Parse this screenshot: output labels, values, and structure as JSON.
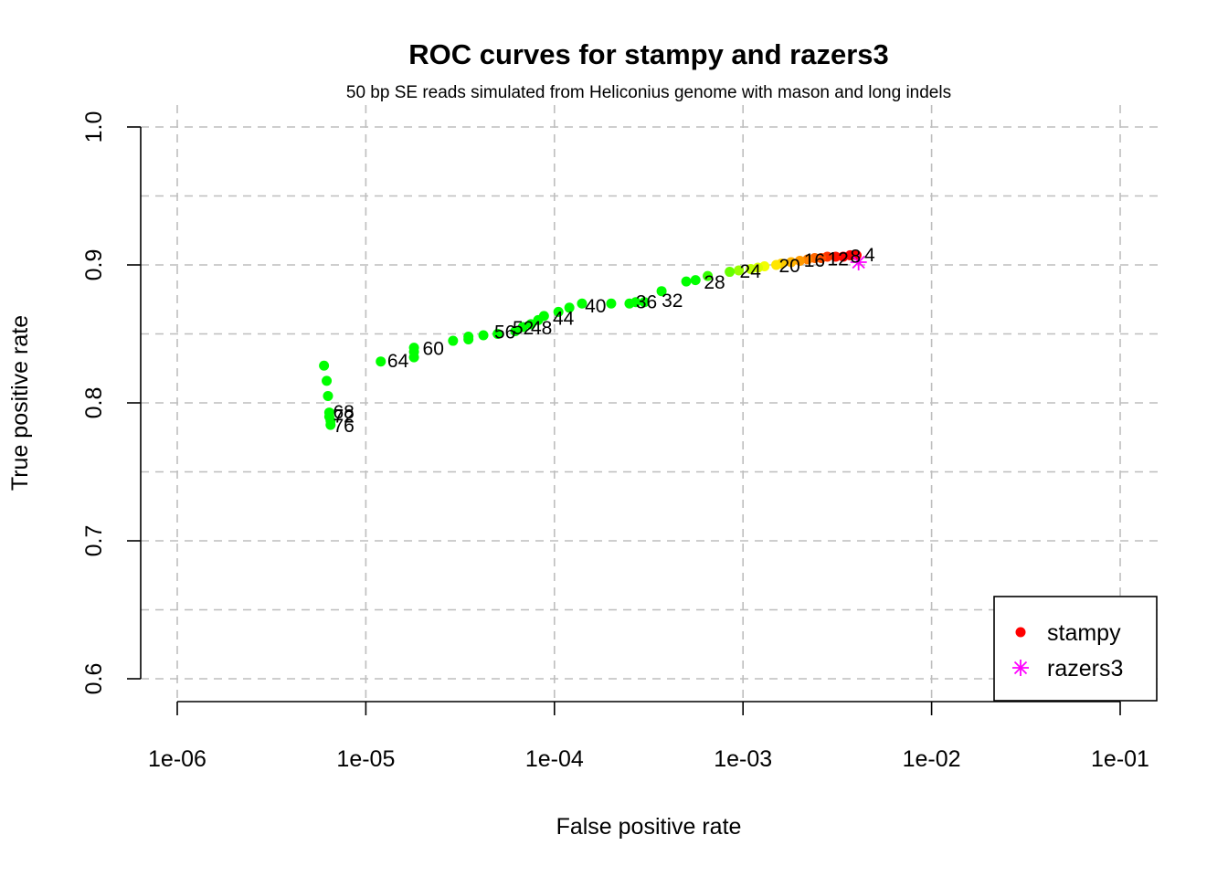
{
  "chart_data": {
    "type": "scatter",
    "title": "ROC curves for stampy and razers3",
    "subtitle": "50 bp SE reads simulated from Heliconius genome with mason and long indels",
    "xlabel": "False positive rate",
    "ylabel": "True positive rate",
    "x_scale": "log10",
    "xlim": [
      1e-06,
      0.1
    ],
    "ylim": [
      0.6,
      1.0
    ],
    "x_ticks": [
      1e-06,
      1e-05,
      0.0001,
      0.001,
      0.01,
      0.1
    ],
    "x_tick_labels": [
      "1e-06",
      "1e-05",
      "1e-04",
      "1e-03",
      "1e-02",
      "1e-01"
    ],
    "y_ticks": [
      0.6,
      0.7,
      0.8,
      0.9,
      1.0
    ],
    "y_tick_labels": [
      "0.6",
      "0.7",
      "0.8",
      "0.9",
      "1.0"
    ],
    "grid": true,
    "legend_position": "bottom-right",
    "series": [
      {
        "name": "stampy",
        "marker": "dot",
        "color": "#ff0000",
        "points": [
          {
            "x": 0.004,
            "y": 0.907,
            "color": "#ff0000"
          },
          {
            "x": 0.0037,
            "y": 0.907,
            "color": "#ff0000"
          },
          {
            "x": 0.0034,
            "y": 0.906,
            "color": "#ff0000"
          },
          {
            "x": 0.0031,
            "y": 0.906,
            "color": "#ff1100"
          },
          {
            "x": 0.0028,
            "y": 0.906,
            "color": "#ff3300"
          },
          {
            "x": 0.0026,
            "y": 0.905,
            "color": "#ff4d00"
          },
          {
            "x": 0.0024,
            "y": 0.905,
            "color": "#ff6600"
          },
          {
            "x": 0.0022,
            "y": 0.904,
            "color": "#ff8000"
          },
          {
            "x": 0.002,
            "y": 0.903,
            "color": "#ff9900"
          },
          {
            "x": 0.0018,
            "y": 0.902,
            "color": "#ffb300"
          },
          {
            "x": 0.0016,
            "y": 0.901,
            "color": "#ffcc00"
          },
          {
            "x": 0.0015,
            "y": 0.9,
            "color": "#ffe600"
          },
          {
            "x": 0.0013,
            "y": 0.899,
            "color": "#f2ff00"
          },
          {
            "x": 0.0012,
            "y": 0.898,
            "color": "#d9ff00"
          },
          {
            "x": 0.0011,
            "y": 0.897,
            "color": "#bfff00"
          },
          {
            "x": 0.00095,
            "y": 0.896,
            "color": "#99ff00"
          },
          {
            "x": 0.00085,
            "y": 0.895,
            "color": "#66ff00"
          },
          {
            "x": 0.00065,
            "y": 0.892,
            "color": "#33ff00"
          },
          {
            "x": 0.00056,
            "y": 0.889,
            "color": "#00ff00"
          },
          {
            "x": 0.0005,
            "y": 0.888,
            "color": "#00ff00"
          },
          {
            "x": 0.00037,
            "y": 0.881,
            "color": "#00ff00"
          },
          {
            "x": 0.0003,
            "y": 0.873,
            "color": "#00ff00"
          },
          {
            "x": 0.00027,
            "y": 0.873,
            "color": "#00ff00"
          },
          {
            "x": 0.00025,
            "y": 0.872,
            "color": "#00ff00"
          },
          {
            "x": 0.0002,
            "y": 0.872,
            "color": "#00ff00"
          },
          {
            "x": 0.00014,
            "y": 0.872,
            "color": "#00ff00"
          },
          {
            "x": 0.00012,
            "y": 0.869,
            "color": "#00ff00"
          },
          {
            "x": 0.000105,
            "y": 0.866,
            "color": "#00ff00"
          },
          {
            "x": 8.8e-05,
            "y": 0.863,
            "color": "#00ff00"
          },
          {
            "x": 8.2e-05,
            "y": 0.86,
            "color": "#00ff00"
          },
          {
            "x": 7.5e-05,
            "y": 0.857,
            "color": "#00ff00"
          },
          {
            "x": 6.8e-05,
            "y": 0.855,
            "color": "#00ff00"
          },
          {
            "x": 6.2e-05,
            "y": 0.852,
            "color": "#00ff00"
          },
          {
            "x": 5e-05,
            "y": 0.85,
            "color": "#00ff00"
          },
          {
            "x": 4.2e-05,
            "y": 0.849,
            "color": "#00ff00"
          },
          {
            "x": 3.5e-05,
            "y": 0.848,
            "color": "#00ff00"
          },
          {
            "x": 3.5e-05,
            "y": 0.846,
            "color": "#00ff00"
          },
          {
            "x": 2.9e-05,
            "y": 0.845,
            "color": "#00ff00"
          },
          {
            "x": 1.8e-05,
            "y": 0.84,
            "color": "#00ff00"
          },
          {
            "x": 1.8e-05,
            "y": 0.837,
            "color": "#00ff00"
          },
          {
            "x": 1.8e-05,
            "y": 0.833,
            "color": "#00ff00"
          },
          {
            "x": 1.2e-05,
            "y": 0.83,
            "color": "#00ff00"
          },
          {
            "x": 6e-06,
            "y": 0.827,
            "color": "#00ff00"
          },
          {
            "x": 6.2e-06,
            "y": 0.816,
            "color": "#00ff00"
          },
          {
            "x": 6.3e-06,
            "y": 0.805,
            "color": "#00ff00"
          },
          {
            "x": 6.4e-06,
            "y": 0.793,
            "color": "#00ff00"
          },
          {
            "x": 6.4e-06,
            "y": 0.79,
            "color": "#00ff00"
          },
          {
            "x": 6.5e-06,
            "y": 0.787,
            "color": "#00ff00"
          },
          {
            "x": 6.5e-06,
            "y": 0.784,
            "color": "#00ff00"
          }
        ]
      },
      {
        "name": "razers3",
        "marker": "asterisk",
        "color": "#ff00ff",
        "points": [
          {
            "x": 0.0041,
            "y": 0.902
          }
        ]
      }
    ],
    "annotations": [
      {
        "text": "4",
        "x": 0.0044,
        "y": 0.908
      },
      {
        "text": "8",
        "x": 0.0037,
        "y": 0.907
      },
      {
        "text": "12",
        "x": 0.0028,
        "y": 0.905
      },
      {
        "text": "16",
        "x": 0.0021,
        "y": 0.904
      },
      {
        "text": "20",
        "x": 0.00155,
        "y": 0.9
      },
      {
        "text": "24",
        "x": 0.00096,
        "y": 0.896
      },
      {
        "text": "28",
        "x": 0.00062,
        "y": 0.888
      },
      {
        "text": "32",
        "x": 0.00037,
        "y": 0.875
      },
      {
        "text": "36",
        "x": 0.00027,
        "y": 0.874
      },
      {
        "text": "40",
        "x": 0.000145,
        "y": 0.871
      },
      {
        "text": "44",
        "x": 9.8e-05,
        "y": 0.862
      },
      {
        "text": "48",
        "x": 7.5e-05,
        "y": 0.855
      },
      {
        "text": "52",
        "x": 6e-05,
        "y": 0.855
      },
      {
        "text": "56",
        "x": 4.8e-05,
        "y": 0.852
      },
      {
        "text": "60",
        "x": 2e-05,
        "y": 0.84
      },
      {
        "text": "64",
        "x": 1.3e-05,
        "y": 0.831
      },
      {
        "text": "68",
        "x": 6.7e-06,
        "y": 0.794
      },
      {
        "text": "72",
        "x": 6.7e-06,
        "y": 0.791
      },
      {
        "text": "76",
        "x": 6.7e-06,
        "y": 0.784
      }
    ]
  }
}
